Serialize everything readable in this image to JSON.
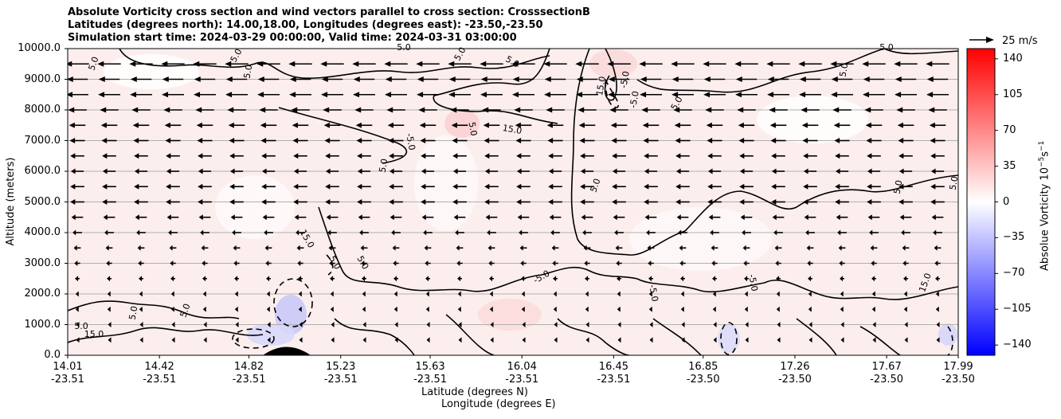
{
  "title": {
    "line1": "Absolute Vorticity cross section and wind vectors parallel to cross section: CrosssectionB",
    "line2": "Latitudes (degrees north): 14.00,18.00, Longitudes (degrees east): -23.50,-23.50",
    "line3": "Simulation start time: 2024-03-29 00:00:00, Valid time: 2024-03-31 03:00:00"
  },
  "quiver_key": "25 m/s",
  "colorbar": {
    "label": "Absolue Vorticity 10",
    "label_sup": "−5",
    "label_unit": "s",
    "label_unit_sup": "−1",
    "ticks": [
      "140",
      "105",
      "70",
      "35",
      "0",
      "−35",
      "−70",
      "−105",
      "−140"
    ],
    "range": [
      -150,
      150
    ],
    "colormap": "bwr",
    "colors": {
      "low": "#0000ff",
      "mid": "#ffffff",
      "high": "#ff0000"
    }
  },
  "chart_data": {
    "type": "contour",
    "ylabel": "Altitude (meters)",
    "xlabel_line1": "Latitude (degrees N)",
    "xlabel_line2": "Longitude (degrees E)",
    "ylim": [
      0,
      10000
    ],
    "yticks": [
      "0.0",
      "1000.0",
      "2000.0",
      "3000.0",
      "4000.0",
      "5000.0",
      "6000.0",
      "7000.0",
      "8000.0",
      "9000.0",
      "10000.0"
    ],
    "xlim": [
      14.01,
      17.99
    ],
    "xticks": [
      {
        "lat": "14.01",
        "lon": "-23.51"
      },
      {
        "lat": "14.42",
        "lon": "-23.51"
      },
      {
        "lat": "14.82",
        "lon": "-23.51"
      },
      {
        "lat": "15.23",
        "lon": "-23.51"
      },
      {
        "lat": "15.63",
        "lon": "-23.51"
      },
      {
        "lat": "16.04",
        "lon": "-23.51"
      },
      {
        "lat": "16.45",
        "lon": "-23.51"
      },
      {
        "lat": "16.85",
        "lon": "-23.50"
      },
      {
        "lat": "17.26",
        "lon": "-23.50"
      },
      {
        "lat": "17.67",
        "lon": "-23.50"
      },
      {
        "lat": "17.99",
        "lon": "-23.50"
      }
    ],
    "grid": "horizontal",
    "contour_levels": [
      "-5.0",
      "5.0",
      "15.0"
    ],
    "contour_labels": [
      "5.0",
      "5.0",
      "5.0",
      "5.0",
      "5.0",
      "5.0",
      "5.0",
      "5.0",
      "15.0",
      "-5.0",
      "-5.0",
      "5.0",
      "15.0",
      "5.0",
      "-5.0",
      "5.0",
      "5.0",
      "5.0",
      "5.0",
      "15.0",
      "5.0",
      "5.0",
      "-5.0",
      "-5.0",
      "15.0",
      "-5.0",
      "5.0",
      "5.0",
      "15.0",
      "5.0"
    ],
    "wind_vectors": [
      {
        "alt": 9500,
        "u": -20
      },
      {
        "alt": 9000,
        "u": -18
      },
      {
        "alt": 8500,
        "u": -19
      },
      {
        "alt": 8000,
        "u": -16
      },
      {
        "alt": 7500,
        "u": -14
      },
      {
        "alt": 7000,
        "u": -13
      },
      {
        "alt": 6500,
        "u": -12
      },
      {
        "alt": 6000,
        "u": -11
      },
      {
        "alt": 5500,
        "u": -12
      },
      {
        "alt": 5000,
        "u": -12
      },
      {
        "alt": 4500,
        "u": -10
      },
      {
        "alt": 4000,
        "u": -8
      },
      {
        "alt": 3500,
        "u": -6
      },
      {
        "alt": 3000,
        "u": -5
      },
      {
        "alt": 2500,
        "u": -4
      },
      {
        "alt": 2000,
        "u": -3
      },
      {
        "alt": 1500,
        "u": -3
      },
      {
        "alt": 1000,
        "u": -2
      },
      {
        "alt": 500,
        "u": -2
      }
    ]
  }
}
